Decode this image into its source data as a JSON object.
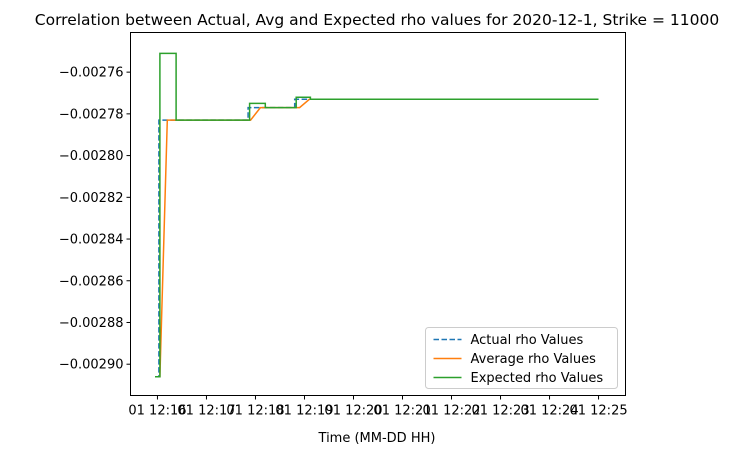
{
  "chart_data": {
    "type": "line",
    "title": "Correlation between Actual, Avg and Expected rho values for 2020-12-1, Strike = 11000",
    "xlabel": "Time (MM-DD HH)",
    "ylabel": "",
    "x_tick_labels": [
      "01 12:16",
      "01 12:17",
      "01 12:18",
      "01 12:19",
      "01 12:20",
      "01 12:21",
      "01 12:22",
      "01 12:23",
      "01 12:24",
      "01 12:25"
    ],
    "x_tick_values": [
      16,
      17,
      18,
      19,
      20,
      21,
      22,
      23,
      24,
      25
    ],
    "y_ticks": [
      -0.0029,
      -0.00288,
      -0.00286,
      -0.00284,
      -0.00282,
      -0.0028,
      -0.00278,
      -0.00276
    ],
    "y_tick_labels": [
      "−0.00290",
      "−0.00288",
      "−0.00286",
      "−0.00284",
      "−0.00282",
      "−0.00280",
      "−0.00278",
      "−0.00276"
    ],
    "xlim": [
      15.45,
      25.55
    ],
    "ylim": [
      -0.002915,
      -0.002741
    ],
    "grid": false,
    "legend_position": "lower right",
    "series": [
      {
        "name": "Actual rho Values",
        "color": "#1f77b4",
        "style": "dashed",
        "step": true,
        "x": [
          15.95,
          16.03,
          16.1,
          17.85,
          18.0,
          18.8,
          19.0,
          25.0
        ],
        "y": [
          -0.002906,
          -0.002783,
          -0.002783,
          -0.002777,
          -0.002777,
          -0.002773,
          -0.002773,
          -0.002773
        ]
      },
      {
        "name": "Average rho Values",
        "color": "#ff7f0e",
        "style": "solid",
        "step": false,
        "x": [
          15.95,
          16.05,
          16.2,
          17.9,
          18.1,
          18.9,
          19.1,
          25.0
        ],
        "y": [
          -0.002906,
          -0.002906,
          -0.002783,
          -0.002783,
          -0.002777,
          -0.002777,
          -0.002773,
          -0.002773
        ]
      },
      {
        "name": "Expected rho Values",
        "color": "#2ca02c",
        "style": "solid",
        "step": true,
        "x": [
          15.95,
          16.05,
          16.38,
          17.88,
          18.2,
          18.83,
          19.12,
          25.0
        ],
        "y": [
          -0.002906,
          -0.002751,
          -0.002783,
          -0.002775,
          -0.002777,
          -0.002772,
          -0.002773,
          -0.002773
        ]
      }
    ]
  }
}
